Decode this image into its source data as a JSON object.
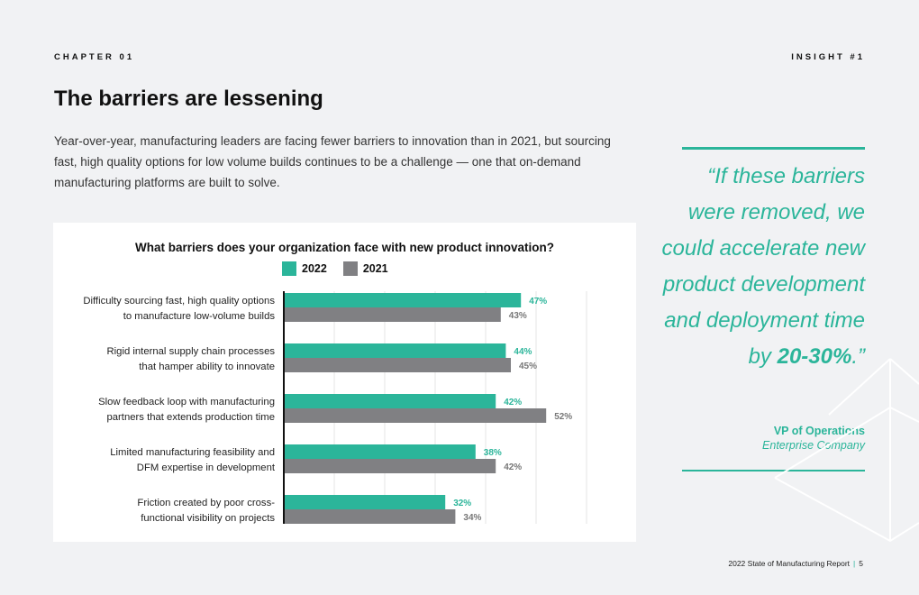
{
  "header": {
    "chapter": "CHAPTER 01",
    "insight": "INSIGHT #1"
  },
  "main": {
    "title": "The barriers are lessening",
    "intro": "Year-over-year, manufacturing leaders are facing fewer barriers to innovation than in 2021, but sourcing fast, high quality options for low volume builds continues to be a challenge — one that on-demand manufacturing platforms are built to solve."
  },
  "quote": {
    "text_before": "“If these barriers were removed, we could accelerate new product development and deployment time by ",
    "highlight": "20-30%",
    "text_after": ".”",
    "author": "VP of Operations",
    "organization": "Enterprise Company"
  },
  "footer": {
    "report": "2022 State of Manufacturing Report",
    "separator": "|",
    "page": "5"
  },
  "colors": {
    "accent": "#2bb59a",
    "series_2021": "#808083",
    "background": "#f1f2f4"
  },
  "chart_data": {
    "type": "bar",
    "orientation": "horizontal",
    "title": "What barriers does your organization face with new product innovation?",
    "legend_position": "top-center",
    "grid": true,
    "xlim": [
      0,
      60
    ],
    "categories": [
      [
        "Difficulty sourcing fast, high quality options",
        "to manufacture low-volume builds"
      ],
      [
        "Rigid internal supply chain processes",
        "that hamper ability to innovate"
      ],
      [
        "Slow feedback loop with manufacturing",
        "partners that extends production time"
      ],
      [
        "Limited manufacturing feasibility and",
        "DFM expertise in development"
      ],
      [
        "Friction created by poor cross-",
        "functional visibility on projects"
      ]
    ],
    "series": [
      {
        "name": "2022",
        "color": "#2bb59a",
        "values": [
          47,
          44,
          42,
          38,
          32
        ],
        "labels": [
          "47%",
          "44%",
          "42%",
          "38%",
          "32%"
        ]
      },
      {
        "name": "2021",
        "color": "#808083",
        "values": [
          43,
          45,
          52,
          42,
          34
        ],
        "labels": [
          "43%",
          "45%",
          "52%",
          "42%",
          "34%"
        ]
      }
    ]
  }
}
